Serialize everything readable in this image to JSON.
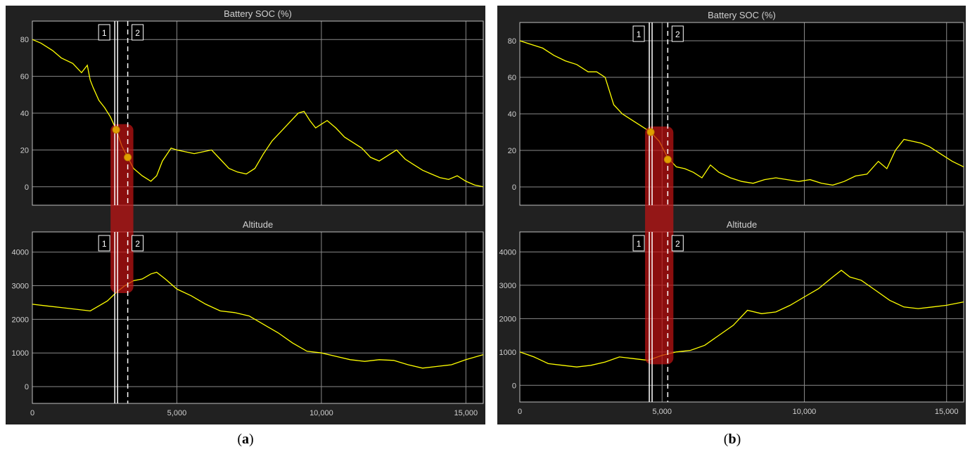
{
  "colors": {
    "background": "#212121",
    "plot_bg": "#000000",
    "grid": "#8a8a8a",
    "frame": "#bfbfbf",
    "text": "#d0d0d0",
    "trace": "#ffff00",
    "highlight": "#c01414",
    "marker": "#e0a000"
  },
  "panels": [
    {
      "id": "a",
      "caption_open": "(",
      "caption_letter": "a",
      "caption_close": ")",
      "top_title": "Battery SOC (%)",
      "bottom_title": "Altitude",
      "cursor1_label": "1",
      "cursor2_label": "2",
      "cursor1_x": 2900,
      "cursor2_x": 3300,
      "soc_marker1": 31,
      "soc_marker2": 16,
      "alt_band": [
        2950,
        3250
      ]
    },
    {
      "id": "b",
      "caption_open": "(",
      "caption_letter": "b",
      "caption_close": ")",
      "top_title": "Battery SOC (%)",
      "bottom_title": "Altitude",
      "cursor1_label": "1",
      "cursor2_label": "2",
      "cursor1_x": 4600,
      "cursor2_x": 5200,
      "soc_marker1": 30,
      "soc_marker2": 15,
      "alt_band": [
        800,
        1050
      ]
    }
  ],
  "chart_data": [
    {
      "type": "line",
      "panel": "a",
      "title": "Battery SOC (%)",
      "xlim": [
        0,
        15600
      ],
      "ylim": [
        -10,
        90
      ],
      "x_ticks": [
        0,
        5000,
        10000,
        15000
      ],
      "x_tick_labels": [
        "0",
        "5,000",
        "10,000",
        "15,000"
      ],
      "y_ticks": [
        0,
        20,
        40,
        60,
        80
      ],
      "y_tick_labels": [
        "0",
        "20",
        "40",
        "60",
        "80"
      ],
      "grid": true,
      "series": [
        {
          "x": [
            0,
            300,
            700,
            1000,
            1400,
            1700,
            1900,
            2000,
            2100,
            2300,
            2500,
            2700,
            2900,
            3100,
            3300,
            3500,
            3800,
            4100,
            4300,
            4500,
            4800,
            5000,
            5300,
            5600,
            5900,
            6200,
            6500,
            6800,
            7100,
            7400,
            7700,
            8000,
            8300,
            8600,
            8900,
            9200,
            9400,
            9600,
            9800,
            10000,
            10200,
            10500,
            10800,
            11100,
            11400,
            11700,
            12000,
            12300,
            12600,
            12900,
            13200,
            13500,
            13800,
            14100,
            14400,
            14700,
            15000,
            15300,
            15600
          ],
          "y": [
            80,
            78,
            74,
            70,
            67,
            62,
            66,
            58,
            54,
            47,
            43,
            38,
            31,
            22,
            16,
            10,
            6,
            3,
            6,
            14,
            21,
            20,
            19,
            18,
            19,
            20,
            15,
            10,
            8,
            7,
            10,
            18,
            25,
            30,
            35,
            40,
            41,
            36,
            32,
            34,
            36,
            32,
            27,
            24,
            21,
            16,
            14,
            17,
            20,
            15,
            12,
            9,
            7,
            5,
            4,
            6,
            3,
            1,
            0
          ]
        }
      ]
    },
    {
      "type": "line",
      "panel": "a",
      "title": "Altitude",
      "xlim": [
        0,
        15600
      ],
      "ylim": [
        -500,
        4600
      ],
      "x_ticks": [
        0,
        5000,
        10000,
        15000
      ],
      "x_tick_labels": [
        "0",
        "5,000",
        "10,000",
        "15,000"
      ],
      "y_ticks": [
        0,
        1000,
        2000,
        3000,
        4000
      ],
      "y_tick_labels": [
        "0",
        "1000",
        "2000",
        "3000",
        "4000"
      ],
      "grid": true,
      "series": [
        {
          "x": [
            0,
            500,
            1000,
            1500,
            2000,
            2300,
            2600,
            2900,
            3200,
            3500,
            3800,
            4100,
            4300,
            4600,
            5000,
            5500,
            6000,
            6500,
            7000,
            7500,
            8000,
            8500,
            9000,
            9500,
            10000,
            10500,
            11000,
            11500,
            12000,
            12500,
            13000,
            13500,
            14000,
            14500,
            15000,
            15600
          ],
          "y": [
            2450,
            2400,
            2350,
            2300,
            2250,
            2400,
            2550,
            2800,
            3000,
            3150,
            3200,
            3350,
            3400,
            3200,
            2900,
            2700,
            2450,
            2250,
            2200,
            2100,
            1850,
            1600,
            1300,
            1050,
            1000,
            900,
            800,
            750,
            800,
            780,
            650,
            550,
            600,
            650,
            800,
            950
          ]
        }
      ]
    },
    {
      "type": "line",
      "panel": "b",
      "title": "Battery SOC (%)",
      "xlim": [
        0,
        15600
      ],
      "ylim": [
        -10,
        90
      ],
      "x_ticks": [
        0,
        5000,
        10000,
        15000
      ],
      "x_tick_labels": [
        "0",
        "5,000",
        "10,000",
        "15,000"
      ],
      "y_ticks": [
        0,
        20,
        40,
        60,
        80
      ],
      "y_tick_labels": [
        "0",
        "20",
        "40",
        "60",
        "80"
      ],
      "grid": true,
      "series": [
        {
          "x": [
            0,
            400,
            800,
            1200,
            1600,
            2000,
            2400,
            2700,
            3000,
            3300,
            3600,
            3900,
            4200,
            4600,
            4900,
            5200,
            5500,
            5800,
            6100,
            6400,
            6700,
            7000,
            7400,
            7800,
            8200,
            8600,
            9000,
            9400,
            9800,
            10200,
            10600,
            11000,
            11400,
            11800,
            12200,
            12600,
            12900,
            13200,
            13500,
            13800,
            14100,
            14400,
            14800,
            15200,
            15600
          ],
          "y": [
            80,
            78,
            76,
            72,
            69,
            67,
            63,
            63,
            60,
            45,
            40,
            37,
            34,
            30,
            25,
            16,
            11,
            10,
            8,
            5,
            12,
            8,
            5,
            3,
            2,
            4,
            5,
            4,
            3,
            4,
            2,
            1,
            3,
            6,
            7,
            14,
            10,
            20,
            26,
            25,
            24,
            22,
            18,
            14,
            11
          ]
        }
      ]
    },
    {
      "type": "line",
      "panel": "b",
      "title": "Altitude",
      "xlim": [
        0,
        15600
      ],
      "ylim": [
        -500,
        4600
      ],
      "x_ticks": [
        0,
        5000,
        10000,
        15000
      ],
      "x_tick_labels": [
        "0",
        "5,000",
        "10,000",
        "15,000"
      ],
      "y_ticks": [
        0,
        1000,
        2000,
        3000,
        4000
      ],
      "y_tick_labels": [
        "0",
        "1000",
        "2000",
        "3000",
        "4000"
      ],
      "grid": true,
      "series": [
        {
          "x": [
            0,
            500,
            1000,
            1500,
            2000,
            2500,
            3000,
            3500,
            4000,
            4500,
            5000,
            5500,
            6000,
            6500,
            7000,
            7500,
            8000,
            8500,
            9000,
            9500,
            10000,
            10500,
            11000,
            11300,
            11600,
            12000,
            12500,
            13000,
            13500,
            14000,
            14500,
            15000,
            15600
          ],
          "y": [
            1000,
            850,
            650,
            600,
            550,
            600,
            700,
            850,
            800,
            750,
            900,
            1000,
            1050,
            1200,
            1500,
            1800,
            2250,
            2150,
            2200,
            2400,
            2650,
            2900,
            3250,
            3450,
            3250,
            3150,
            2850,
            2550,
            2350,
            2300,
            2350,
            2400,
            2500
          ]
        }
      ]
    }
  ]
}
